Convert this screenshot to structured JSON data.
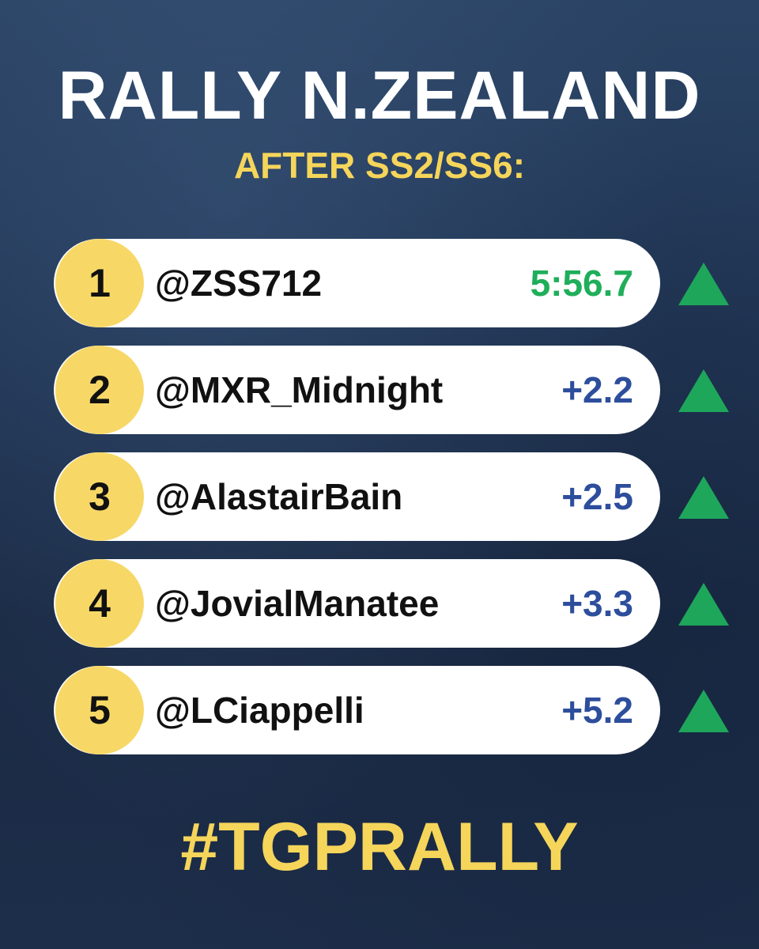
{
  "header": {
    "title": "RALLY N.ZEALAND",
    "subtitle": "AFTER SS2/SS6:"
  },
  "table": {
    "rows": [
      {
        "position": 1,
        "name": "@ZSS712",
        "time": "5:56.7"
      },
      {
        "position": 2,
        "name": "@MXR_Midnight",
        "time": "+2.2"
      },
      {
        "position": 3,
        "name": "@AlastairBain",
        "time": "+2.5"
      },
      {
        "position": 4,
        "name": "@JovialManatee",
        "time": "+3.3"
      },
      {
        "position": 5,
        "name": "@LCiappelli",
        "time": "+5.2"
      }
    ]
  },
  "footer": {
    "hashtag": "#TGPRALLY"
  }
}
